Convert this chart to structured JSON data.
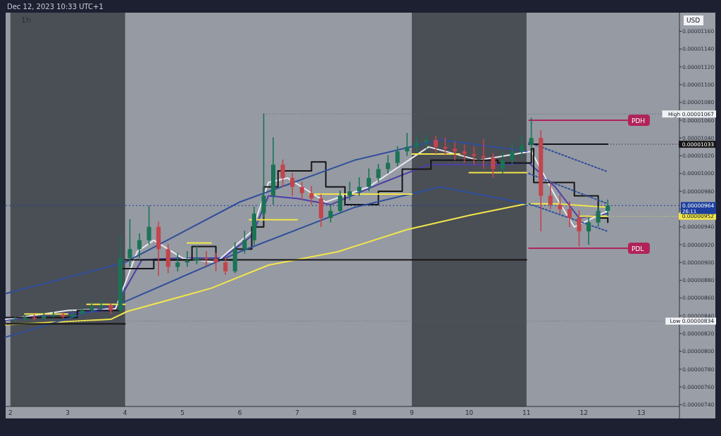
{
  "chart_data": {
    "type": "candlestick",
    "title": "1h",
    "subtitle": "Dec 12, 2023 10:33 UTC+1",
    "x": [
      "2023-12-02T02:00",
      "2023-12-02T06:00",
      "2023-12-02T10:00",
      "2023-12-02T14:00",
      "2023-12-02T18:00",
      "2023-12-02T22:00",
      "2023-12-03T02:00",
      "2023-12-03T06:00",
      "2023-12-03T10:00",
      "2023-12-03T14:00",
      "2023-12-03T18:00",
      "2023-12-03T22:00",
      "2023-12-04T02:00",
      "2023-12-04T06:00",
      "2023-12-04T10:00",
      "2023-12-04T14:00",
      "2023-12-04T18:00",
      "2023-12-04T22:00",
      "2023-12-05T02:00",
      "2023-12-05T06:00",
      "2023-12-05T10:00",
      "2023-12-05T14:00",
      "2023-12-05T18:00",
      "2023-12-05T22:00",
      "2023-12-06T02:00",
      "2023-12-06T06:00",
      "2023-12-06T10:00",
      "2023-12-06T14:00",
      "2023-12-06T18:00",
      "2023-12-06T22:00",
      "2023-12-07T02:00",
      "2023-12-07T06:00",
      "2023-12-07T10:00",
      "2023-12-07T14:00",
      "2023-12-07T18:00",
      "2023-12-07T22:00",
      "2023-12-08T02:00",
      "2023-12-08T06:00",
      "2023-12-08T10:00",
      "2023-12-08T14:00",
      "2023-12-08T18:00",
      "2023-12-08T22:00",
      "2023-12-09T02:00",
      "2023-12-09T06:00",
      "2023-12-09T10:00",
      "2023-12-09T14:00",
      "2023-12-09T18:00",
      "2023-12-09T22:00",
      "2023-12-10T02:00",
      "2023-12-10T06:00",
      "2023-12-10T10:00",
      "2023-12-10T14:00",
      "2023-12-10T18:00",
      "2023-12-10T22:00",
      "2023-12-11T02:00",
      "2023-12-11T06:00",
      "2023-12-11T10:00",
      "2023-12-11T14:00",
      "2023-12-11T18:00",
      "2023-12-11T22:00",
      "2023-12-12T02:00",
      "2023-12-12T06:00",
      "2023-12-12T10:00"
    ],
    "ohlc": [
      [
        8.35e-06,
        8.38e-06,
        8.34e-06,
        8.36e-06
      ],
      [
        8.36e-06,
        8.4e-06,
        8.35e-06,
        8.38e-06
      ],
      [
        8.38e-06,
        8.41e-06,
        8.35e-06,
        8.37e-06
      ],
      [
        8.37e-06,
        8.43e-06,
        8.36e-06,
        8.4e-06
      ],
      [
        8.4e-06,
        8.44e-06,
        8.38e-06,
        8.41e-06
      ],
      [
        8.41e-06,
        8.43e-06,
        8.37e-06,
        8.39e-06
      ],
      [
        8.39e-06,
        8.45e-06,
        8.38e-06,
        8.42e-06
      ],
      [
        8.42e-06,
        8.49e-06,
        8.41e-06,
        8.46e-06
      ],
      [
        8.46e-06,
        8.56e-06,
        8.45e-06,
        8.5e-06
      ],
      [
        8.5e-06,
        8.57e-06,
        8.47e-06,
        8.52e-06
      ],
      [
        8.52e-06,
        8.53e-06,
        8.42e-06,
        8.46e-06
      ],
      [
        8.46e-06,
        9.3e-06,
        8.44e-06,
        9.05e-06
      ],
      [
        9.05e-06,
        9.48e-06,
        8.95e-06,
        9.15e-06
      ],
      [
        9.15e-06,
        9.32e-06,
        9.05e-06,
        9.25e-06
      ],
      [
        9.25e-06,
        9.63e-06,
        9.2e-06,
        9.4e-06
      ],
      [
        9.4e-06,
        9.45e-06,
        8.85e-06,
        9.15e-06
      ],
      [
        9.15e-06,
        9.2e-06,
        8.88e-06,
        8.95e-06
      ],
      [
        8.95e-06,
        9.1e-06,
        8.9e-06,
        9e-06
      ],
      [
        9e-06,
        9.12e-06,
        8.95e-06,
        9.02e-06
      ],
      [
        9.02e-06,
        9.18e-06,
        8.98e-06,
        9.05e-06
      ],
      [
        9.05e-06,
        9.12e-06,
        8.96e-06,
        9.04e-06
      ],
      [
        9.04e-06,
        9.1e-06,
        8.9e-06,
        9e-06
      ],
      [
        9e-06,
        9.05e-06,
        8.86e-06,
        8.9e-06
      ],
      [
        8.9e-06,
        9.22e-06,
        8.88e-06,
        9.15e-06
      ],
      [
        9.15e-06,
        9.35e-06,
        9.1e-06,
        9.25e-06
      ],
      [
        9.25e-06,
        9.62e-06,
        9.2e-06,
        9.55e-06
      ],
      [
        9.55e-06,
        1.067e-05,
        9.5e-06,
        9.75e-06
      ],
      [
        9.75e-06,
        1.04e-05,
        9.65e-06,
        1.01e-05
      ],
      [
        1.01e-05,
        1.015e-05,
        9.85e-06,
        9.95e-06
      ],
      [
        9.95e-06,
        1e-05,
        9.75e-06,
        9.85e-06
      ],
      [
        9.85e-06,
        9.9e-06,
        9.7e-06,
        9.78e-06
      ],
      [
        9.78e-06,
        9.85e-06,
        9.65e-06,
        9.72e-06
      ],
      [
        9.72e-06,
        9.76e-06,
        9.4e-06,
        9.5e-06
      ],
      [
        9.5e-06,
        9.65e-06,
        9.45e-06,
        9.58e-06
      ],
      [
        9.58e-06,
        9.8e-06,
        9.55e-06,
        9.75e-06
      ],
      [
        9.75e-06,
        9.9e-06,
        9.7e-06,
        9.8e-06
      ],
      [
        9.8e-06,
        9.95e-06,
        9.75e-06,
        9.85e-06
      ],
      [
        9.85e-06,
        1.005e-05,
        9.8e-06,
        9.95e-06
      ],
      [
        9.95e-06,
        1.01e-05,
        9.9e-06,
        1.005e-05
      ],
      [
        1.005e-05,
        1.02e-05,
        1e-05,
        1.012e-05
      ],
      [
        1.012e-05,
        1.03e-05,
        1.008e-05,
        1.025e-05
      ],
      [
        1.025e-05,
        1.045e-05,
        1.02e-05,
        1.03e-05
      ],
      [
        1.03e-05,
        1.042e-05,
        1.025e-05,
        1.035e-05
      ],
      [
        1.035e-05,
        1.045e-05,
        1.028e-05,
        1.038e-05
      ],
      [
        1.038e-05,
        1.042e-05,
        1.022e-05,
        1.03e-05
      ],
      [
        1.03e-05,
        1.04e-05,
        1.02e-05,
        1.028e-05
      ],
      [
        1.028e-05,
        1.035e-05,
        1.015e-05,
        1.025e-05
      ],
      [
        1.025e-05,
        1.032e-05,
        1.012e-05,
        1.022e-05
      ],
      [
        1.022e-05,
        1.03e-05,
        1.01e-05,
        1.02e-05
      ],
      [
        1.02e-05,
        1.038e-05,
        1.005e-05,
        1.018e-05
      ],
      [
        1.018e-05,
        1.022e-05,
        9.95e-06,
        1.005e-05
      ],
      [
        1.005e-05,
        1.025e-05,
        1e-05,
        1.015e-05
      ],
      [
        1.015e-05,
        1.035e-05,
        1.01e-05,
        1.025e-05
      ],
      [
        1.025e-05,
        1.042e-05,
        1.018e-05,
        1.032e-05
      ],
      [
        1.032e-05,
        1.062e-05,
        1.028e-05,
        1.04e-05
      ],
      [
        1.04e-05,
        1.048e-05,
        9.35e-06,
        9.75e-06
      ],
      [
        9.75e-06,
        9.9e-06,
        9.6e-06,
        9.65e-06
      ],
      [
        9.65e-06,
        9.75e-06,
        9.55e-06,
        9.6e-06
      ],
      [
        9.6e-06,
        9.68e-06,
        9.4e-06,
        9.5e-06
      ],
      [
        9.5e-06,
        9.58e-06,
        9.18e-06,
        9.35e-06
      ],
      [
        9.35e-06,
        9.5e-06,
        9.2e-06,
        9.45e-06
      ],
      [
        9.45e-06,
        9.62e-06,
        9.4e-06,
        9.58e-06
      ],
      [
        9.58e-06,
        9.7e-06,
        9.52e-06,
        9.64e-06
      ]
    ],
    "series": [
      {
        "type": "line",
        "color": "#f2e64b",
        "x": [
          "2023-12-01T22:00",
          "2023-12-03T18:00",
          "2023-12-04T01:00",
          "2023-12-05T00:00",
          "2023-12-05T12:00",
          "2023-12-06T12:00",
          "2023-12-07T17:00",
          "2023-12-08T22:00",
          "2023-12-10T00:00",
          "2023-12-11T00:00",
          "2023-12-11T12:00",
          "2023-12-12T10:00"
        ],
        "values": [
          8.3e-06,
          8.36e-06,
          8.45e-06,
          8.62e-06,
          8.71e-06,
          8.97e-06,
          9.12e-06,
          9.37e-06,
          9.53e-06,
          9.66e-06,
          9.66e-06,
          9.62e-06
        ]
      },
      {
        "type": "line",
        "color": "#4b3fa8",
        "x": [
          "2023-12-01T22:00",
          "2023-12-03T00:00",
          "2023-12-03T19:00",
          "2023-12-04T07:00",
          "2023-12-05T00:00",
          "2023-12-05T17:00",
          "2023-12-06T05:00",
          "2023-12-06T12:00",
          "2023-12-07T00:00",
          "2023-12-07T14:00",
          "2023-12-08T12:00",
          "2023-12-09T07:00",
          "2023-12-10T12:00",
          "2023-12-11T01:00",
          "2023-12-11T12:00",
          "2023-12-11T22:00",
          "2023-12-12T10:00"
        ],
        "values": [
          8.35e-06,
          8.43e-06,
          8.46e-06,
          9.03e-06,
          9.05e-06,
          9.05e-06,
          9.3e-06,
          9.75e-06,
          9.72e-06,
          9.65e-06,
          9.9e-06,
          1.01e-05,
          1.01e-05,
          1.012e-05,
          9.85e-06,
          9.5e-06,
          9.55e-06
        ]
      },
      {
        "type": "line",
        "color": "#e8e8f0",
        "x": [
          "2023-12-01T22:00",
          "2023-12-03T00:00",
          "2023-12-03T20:00",
          "2023-12-04T05:00",
          "2023-12-04T12:00",
          "2023-12-05T00:00",
          "2023-12-05T14:00",
          "2023-12-06T05:00",
          "2023-12-06T12:00",
          "2023-12-06T20:00",
          "2023-12-07T12:00",
          "2023-12-08T06:00",
          "2023-12-09T07:00",
          "2023-12-10T04:00",
          "2023-12-11T02:00",
          "2023-12-11T12:00",
          "2023-12-11T20:00",
          "2023-12-12T10:00"
        ],
        "values": [
          8.36e-06,
          8.46e-06,
          8.48e-06,
          9.12e-06,
          9.25e-06,
          9.05e-06,
          9e-06,
          9.35e-06,
          9.9e-06,
          9.95e-06,
          9.68e-06,
          9.85e-06,
          1.03e-05,
          1.015e-05,
          1.025e-05,
          9.75e-06,
          9.4e-06,
          9.58e-06
        ]
      },
      {
        "type": "step",
        "color": "#151515",
        "x": [
          "2023-12-01T22:00",
          "2023-12-03T04:00",
          "2023-12-03T22:00",
          "2023-12-04T12:00",
          "2023-12-05T04:00",
          "2023-12-05T14:00",
          "2023-12-05T22:00",
          "2023-12-06T05:00",
          "2023-12-06T10:00",
          "2023-12-06T16:00",
          "2023-12-07T06:00",
          "2023-12-07T12:00",
          "2023-12-07T20:00",
          "2023-12-08T10:00",
          "2023-12-08T20:00",
          "2023-12-09T08:00",
          "2023-12-10T12:00",
          "2023-12-11T02:00",
          "2023-12-11T03:00",
          "2023-12-11T20:00",
          "2023-12-12T06:00",
          "2023-12-12T10:00"
        ],
        "values": [
          8.38e-06,
          8.46e-06,
          8.93e-06,
          9.03e-06,
          9.18e-06,
          9.03e-06,
          9.15e-06,
          9.4e-06,
          9.85e-06,
          1.003e-05,
          1.013e-05,
          9.85e-06,
          9.65e-06,
          9.8e-06,
          1.005e-05,
          1.015e-05,
          1.012e-05,
          1.028e-05,
          9.9e-06,
          9.75e-06,
          9.5e-06,
          9.45e-06
        ]
      },
      {
        "type": "line",
        "color": "#2f4f9a",
        "x": [
          "2023-12-01T22:00",
          "2023-12-04T00:00",
          "2023-12-06T00:00",
          "2023-12-08T00:00",
          "2023-12-09T12:00",
          "2023-12-11T00:00"
        ],
        "values": [
          8.65e-06,
          9e-06,
          9.68e-06,
          1.015e-05,
          1.038e-05,
          1.025e-05
        ]
      },
      {
        "type": "line",
        "color": "#2f4f9a",
        "x": [
          "2023-12-01T22:00",
          "2023-12-04T00:00",
          "2023-12-06T00:00",
          "2023-12-08T00:00",
          "2023-12-09T12:00",
          "2023-12-11T00:00"
        ],
        "values": [
          8.16e-06,
          8.56e-06,
          9.12e-06,
          9.62e-06,
          9.85e-06,
          9.66e-06
        ]
      },
      {
        "type": "line",
        "color": "#2f4f9a",
        "line_style": "dotted",
        "x": [
          "2023-12-11T01:00",
          "2023-12-12T10:00"
        ],
        "values": [
          1.035e-05,
          1.002e-05
        ]
      },
      {
        "type": "line",
        "color": "#2f4f9a",
        "line_style": "dotted",
        "x": [
          "2023-12-11T01:00",
          "2023-12-12T10:00"
        ],
        "values": [
          1e-05,
          9.66e-06
        ]
      },
      {
        "type": "line",
        "color": "#2f4f9a",
        "line_style": "dotted",
        "x": [
          "2023-12-11T01:00",
          "2023-12-12T10:00"
        ],
        "values": [
          9.66e-06,
          9.35e-06
        ]
      },
      {
        "type": "line",
        "color": "#151515",
        "x": [
          "2023-12-01T22:00",
          "2023-12-04T00:00"
        ],
        "values": [
          8.31e-06,
          8.31e-06
        ]
      },
      {
        "type": "line",
        "color": "#151515",
        "x": [
          "2023-12-04T00:00",
          "2023-12-11T00:00"
        ],
        "values": [
          9.03e-06,
          9.03e-06
        ]
      },
      {
        "type": "line",
        "color": "#151515",
        "x": [
          "2023-12-11T01:00",
          "2023-12-12T10:00"
        ],
        "values": [
          1.033e-05,
          1.033e-05
        ]
      },
      {
        "type": "line",
        "color": "#f2e64b",
        "x": [
          "2023-12-02T06:00",
          "2023-12-03T00:00"
        ],
        "values": [
          8.42e-06,
          8.42e-06
        ]
      },
      {
        "type": "line",
        "color": "#f2e64b",
        "x": [
          "2023-12-03T08:00",
          "2023-12-04T00:00"
        ],
        "values": [
          8.53e-06,
          8.53e-06
        ]
      },
      {
        "type": "line",
        "color": "#f2e64b",
        "x": [
          "2023-12-05T02:00",
          "2023-12-05T12:00"
        ],
        "values": [
          9.22e-06,
          9.22e-06
        ]
      },
      {
        "type": "line",
        "color": "#f2e64b",
        "x": [
          "2023-12-06T04:00",
          "2023-12-07T00:00"
        ],
        "values": [
          9.48e-06,
          9.48e-06
        ]
      },
      {
        "type": "line",
        "color": "#f2e64b",
        "x": [
          "2023-12-07T05:00",
          "2023-12-09T00:00"
        ],
        "values": [
          9.77e-06,
          9.77e-06
        ]
      },
      {
        "type": "line",
        "color": "#f2e64b",
        "x": [
          "2023-12-09T00:00",
          "2023-12-09T20:00"
        ],
        "values": [
          1.022e-05,
          1.022e-05
        ]
      },
      {
        "type": "line",
        "color": "#f2e64b",
        "x": [
          "2023-12-10T00:00",
          "2023-12-11T00:00"
        ],
        "values": [
          1.001e-05,
          1.001e-05
        ]
      },
      {
        "type": "line",
        "color": "#f2e64b",
        "x": [
          "2023-12-11T22:00",
          "2023-12-12T10:00"
        ],
        "values": [
          9.52e-06,
          9.52e-06
        ]
      },
      {
        "type": "line",
        "name": "PDH",
        "color": "#b0245a",
        "x": [
          "2023-12-11T01:00",
          "2023-12-12T22:00"
        ],
        "values": [
          1.06e-05,
          1.06e-05
        ]
      },
      {
        "type": "line",
        "name": "PDL",
        "color": "#b0245a",
        "x": [
          "2023-12-11T01:00",
          "2023-12-12T22:00"
        ],
        "values": [
          9.16e-06,
          9.16e-06
        ]
      }
    ],
    "xlim": [
      "2023-12-01T22:00",
      "2023-12-13T16:00"
    ],
    "xticks": [
      {
        "value": "2023-12-02",
        "label": "2"
      },
      {
        "value": "2023-12-03",
        "label": "3"
      },
      {
        "value": "2023-12-04",
        "label": "4"
      },
      {
        "value": "2023-12-05",
        "label": "5"
      },
      {
        "value": "2023-12-06",
        "label": "6"
      },
      {
        "value": "2023-12-07",
        "label": "7"
      },
      {
        "value": "2023-12-08",
        "label": "8"
      },
      {
        "value": "2023-12-09",
        "label": "9"
      },
      {
        "value": "2023-12-10",
        "label": "10"
      },
      {
        "value": "2023-12-11",
        "label": "11"
      },
      {
        "value": "2023-12-12",
        "label": "12"
      },
      {
        "value": "2023-12-13",
        "label": "13"
      }
    ],
    "ylim": [
      7.38e-06,
      1.181e-05
    ],
    "yticks": [
      {
        "value": 7.4e-06,
        "label": "0.00000740"
      },
      {
        "value": 7.6e-06,
        "label": "0.00000760"
      },
      {
        "value": 7.8e-06,
        "label": "0.00000780"
      },
      {
        "value": 8e-06,
        "label": "0.00000800"
      },
      {
        "value": 8.2e-06,
        "label": "0.00000820"
      },
      {
        "value": 8.4e-06,
        "label": "0.00000840"
      },
      {
        "value": 8.6e-06,
        "label": "0.00000860"
      },
      {
        "value": 8.8e-06,
        "label": "0.00000880"
      },
      {
        "value": 9e-06,
        "label": "0.00000900"
      },
      {
        "value": 9.2e-06,
        "label": "0.00000920"
      },
      {
        "value": 9.4e-06,
        "label": "0.00000940"
      },
      {
        "value": 9.6e-06,
        "label": null
      },
      {
        "value": 9.8e-06,
        "label": "0.00000980"
      },
      {
        "value": 1e-05,
        "label": "0.00001000"
      },
      {
        "value": 1.02e-05,
        "label": "0.00001020"
      },
      {
        "value": 1.04e-05,
        "label": "0.00001040"
      },
      {
        "value": 1.06e-05,
        "label": "0.00001060"
      },
      {
        "value": 1.08e-05,
        "label": "0.00001080"
      },
      {
        "value": 1.1e-05,
        "label": "0.00001100"
      },
      {
        "value": 1.12e-05,
        "label": "0.00001120"
      },
      {
        "value": 1.14e-05,
        "label": "0.00001140"
      },
      {
        "value": 1.16e-05,
        "label": "0.00001160"
      }
    ],
    "bands": [
      {
        "axis": "x",
        "from": "2023-12-02",
        "to": "2023-12-04",
        "color": "#4a4e55"
      },
      {
        "axis": "x",
        "from": "2023-12-09",
        "to": "2023-12-11",
        "color": "#4a4e55"
      }
    ],
    "ref_lines": [
      {
        "axis": "y",
        "value": 9.64e-06,
        "label": "0.00000964",
        "color": "#1c3f9e",
        "line_style": "dotted"
      }
    ],
    "annotations": [
      "USD",
      "26:11",
      {
        "text": "High 0.00001067",
        "x": "2023-12-06T10:00",
        "y": 1.067e-05
      },
      {
        "text": "0.00001033",
        "x": "2023-12-12T10:00",
        "y": 1.033e-05
      },
      {
        "text": "0.00000952",
        "x": "2023-12-12T10:00",
        "y": 9.52e-06
      },
      {
        "text": "Low 0.00000834",
        "x": "2023-12-02T02:00",
        "y": 8.34e-06
      }
    ],
    "grid": false
  }
}
